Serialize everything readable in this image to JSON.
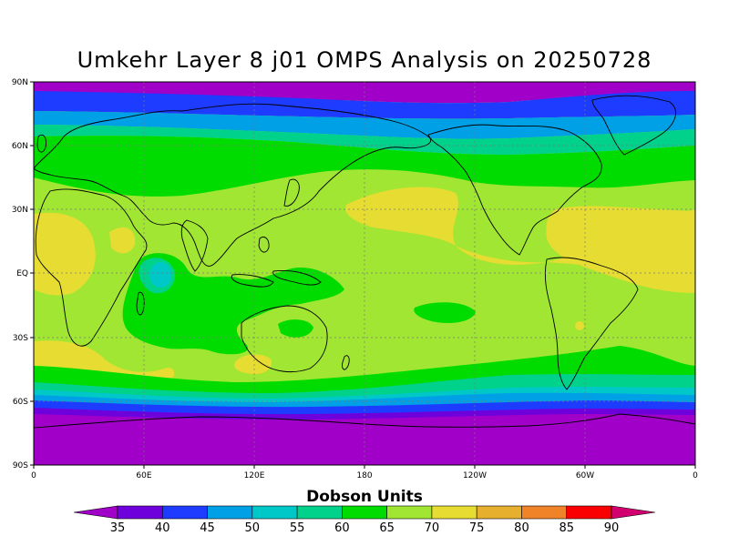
{
  "title": "Umkehr Layer 8 j01 OMPS Analysis on 20250728",
  "map": {
    "lat_labels": [
      "90N",
      "60N",
      "30N",
      "EQ",
      "30S",
      "60S",
      "90S"
    ],
    "lon_labels": [
      "0",
      "60E",
      "120E",
      "180",
      "120W",
      "60W",
      "0"
    ],
    "grid": "dotted"
  },
  "colorbar": {
    "label": "Dobson Units",
    "ticks": [
      "35",
      "40",
      "45",
      "50",
      "55",
      "60",
      "65",
      "70",
      "75",
      "80",
      "85",
      "90"
    ],
    "colors": [
      "#a000c8",
      "#6e00dc",
      "#1e3cff",
      "#00a0e6",
      "#00c8c8",
      "#00d28c",
      "#00dc00",
      "#a0e632",
      "#e6dc32",
      "#e6af2d",
      "#f08228",
      "#fa0000",
      "#d2006e"
    ]
  }
}
